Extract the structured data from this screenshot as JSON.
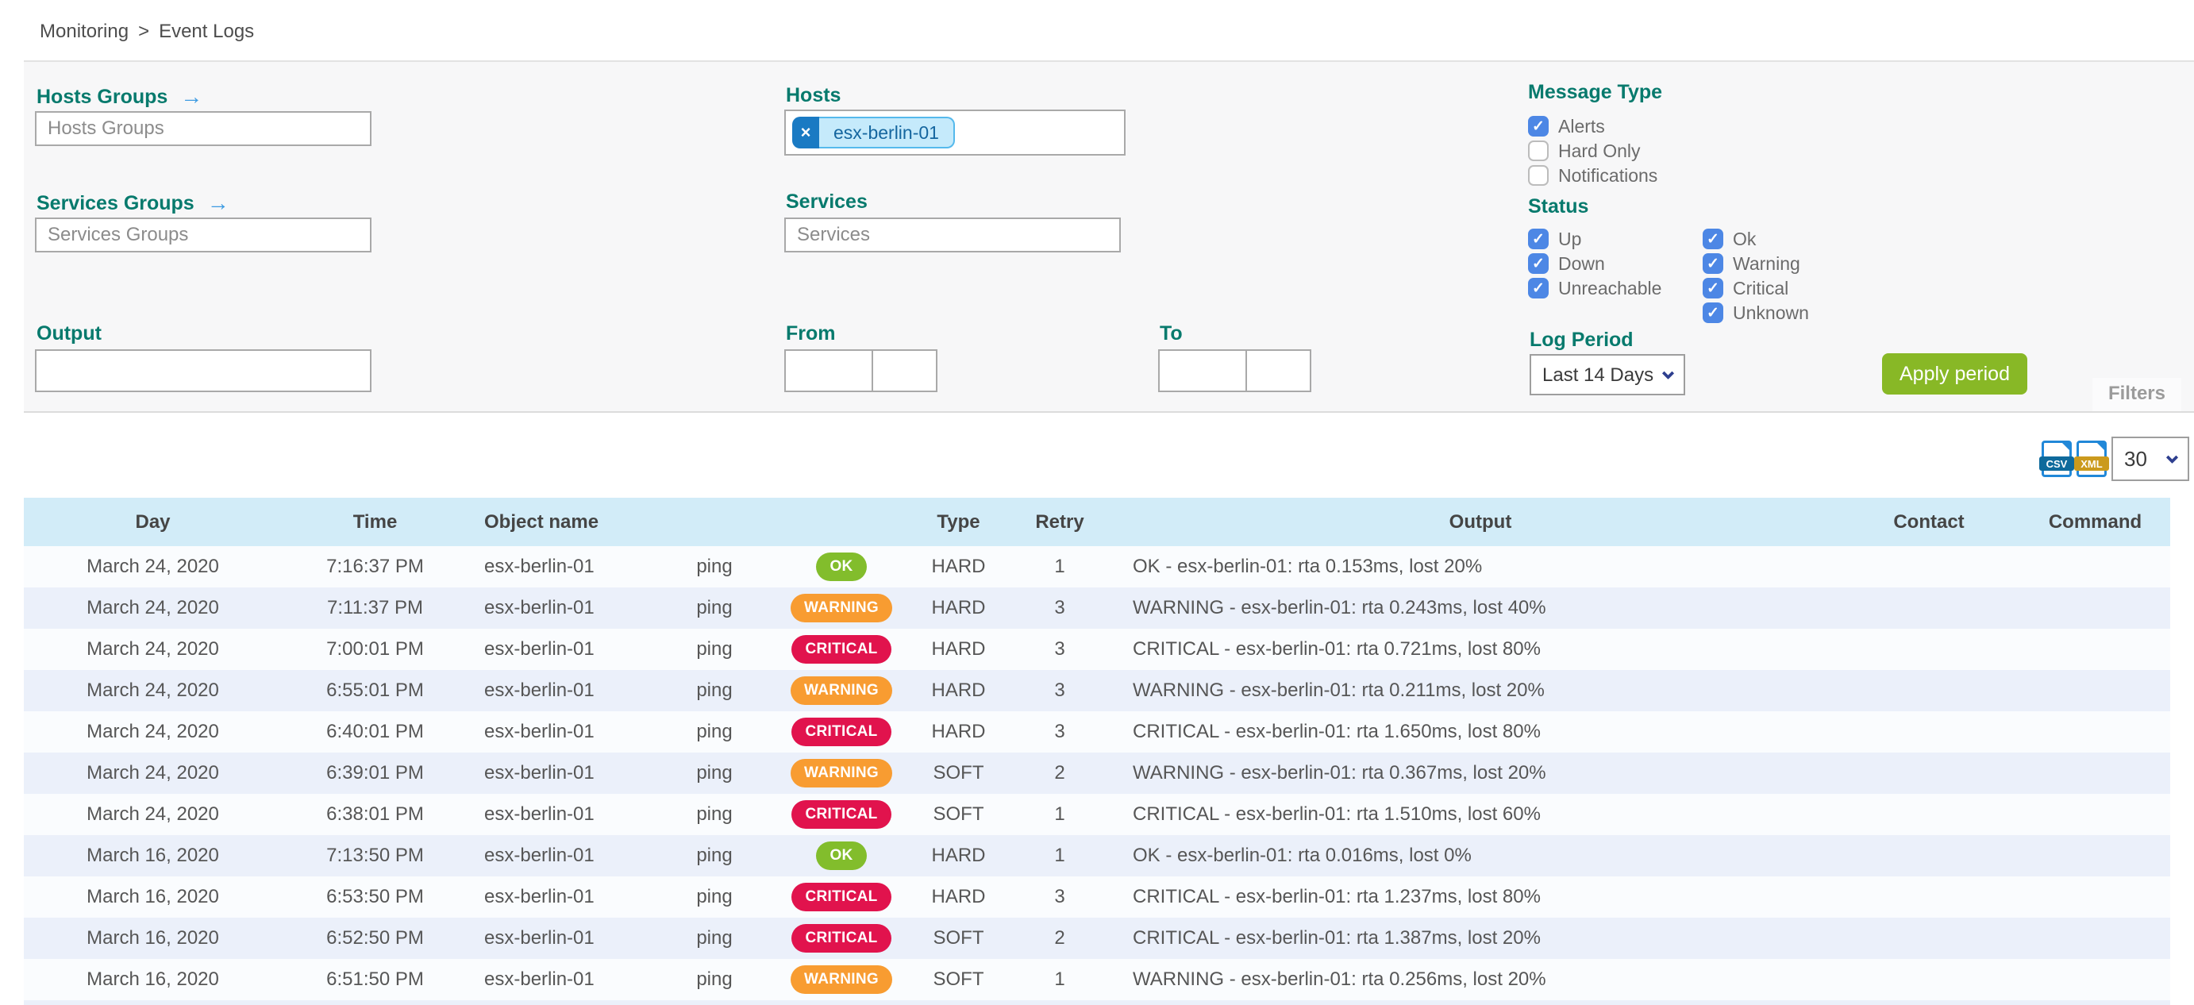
{
  "breadcrumb": {
    "items": [
      "Monitoring",
      "Event Logs"
    ],
    "separator": ">"
  },
  "filters": {
    "arrow_icon": "→",
    "check_glyph": "✓",
    "hosts_groups": {
      "label": "Hosts Groups",
      "placeholder": "Hosts Groups",
      "value": ""
    },
    "services_groups": {
      "label": "Services Groups",
      "placeholder": "Services Groups",
      "value": ""
    },
    "output": {
      "label": "Output",
      "value": ""
    },
    "hosts": {
      "label": "Hosts",
      "chips": [
        {
          "text": "esx-berlin-01",
          "remove_icon": "×"
        }
      ]
    },
    "services": {
      "label": "Services",
      "placeholder": "Services",
      "value": ""
    },
    "from": {
      "label": "From",
      "date_value": "",
      "time_value": ""
    },
    "to": {
      "label": "To",
      "date_value": "",
      "time_value": ""
    },
    "message_type": {
      "label": "Message Type",
      "items": [
        {
          "label": "Alerts",
          "checked": true
        },
        {
          "label": "Hard Only",
          "checked": false
        },
        {
          "label": "Notifications",
          "checked": false
        }
      ]
    },
    "status": {
      "label": "Status",
      "columns": [
        [
          {
            "label": "Up",
            "checked": true
          },
          {
            "label": "Down",
            "checked": true
          },
          {
            "label": "Unreachable",
            "checked": true
          }
        ],
        [
          {
            "label": "Ok",
            "checked": true
          },
          {
            "label": "Warning",
            "checked": true
          },
          {
            "label": "Critical",
            "checked": true
          },
          {
            "label": "Unknown",
            "checked": true
          }
        ]
      ]
    },
    "log_period": {
      "label": "Log Period",
      "selected": "Last 14 Days"
    },
    "apply_button": "Apply period",
    "filters_tab": "Filters"
  },
  "export": {
    "csv_label": "CSV",
    "xml_label": "XML",
    "page_size": "30"
  },
  "table": {
    "columns": [
      "Day",
      "Time",
      "Object name",
      "",
      "",
      "Type",
      "Retry",
      "Output",
      "Contact",
      "Command"
    ],
    "rows": [
      {
        "day": "March 24, 2020",
        "time": "7:16:37 PM",
        "object": "esx-berlin-01",
        "service": "ping",
        "status": "OK",
        "type": "HARD",
        "retry": "1",
        "output": "OK - esx-berlin-01: rta 0.153ms, lost 20%",
        "contact": "",
        "command": ""
      },
      {
        "day": "March 24, 2020",
        "time": "7:11:37 PM",
        "object": "esx-berlin-01",
        "service": "ping",
        "status": "WARNING",
        "type": "HARD",
        "retry": "3",
        "output": "WARNING - esx-berlin-01: rta 0.243ms, lost 40%",
        "contact": "",
        "command": ""
      },
      {
        "day": "March 24, 2020",
        "time": "7:00:01 PM",
        "object": "esx-berlin-01",
        "service": "ping",
        "status": "CRITICAL",
        "type": "HARD",
        "retry": "3",
        "output": "CRITICAL - esx-berlin-01: rta 0.721ms, lost 80%",
        "contact": "",
        "command": ""
      },
      {
        "day": "March 24, 2020",
        "time": "6:55:01 PM",
        "object": "esx-berlin-01",
        "service": "ping",
        "status": "WARNING",
        "type": "HARD",
        "retry": "3",
        "output": "WARNING - esx-berlin-01: rta 0.211ms, lost 20%",
        "contact": "",
        "command": ""
      },
      {
        "day": "March 24, 2020",
        "time": "6:40:01 PM",
        "object": "esx-berlin-01",
        "service": "ping",
        "status": "CRITICAL",
        "type": "HARD",
        "retry": "3",
        "output": "CRITICAL - esx-berlin-01: rta 1.650ms, lost 80%",
        "contact": "",
        "command": ""
      },
      {
        "day": "March 24, 2020",
        "time": "6:39:01 PM",
        "object": "esx-berlin-01",
        "service": "ping",
        "status": "WARNING",
        "type": "SOFT",
        "retry": "2",
        "output": "WARNING - esx-berlin-01: rta 0.367ms, lost 20%",
        "contact": "",
        "command": ""
      },
      {
        "day": "March 24, 2020",
        "time": "6:38:01 PM",
        "object": "esx-berlin-01",
        "service": "ping",
        "status": "CRITICAL",
        "type": "SOFT",
        "retry": "1",
        "output": "CRITICAL - esx-berlin-01: rta 1.510ms, lost 60%",
        "contact": "",
        "command": ""
      },
      {
        "day": "March 16, 2020",
        "time": "7:13:50 PM",
        "object": "esx-berlin-01",
        "service": "ping",
        "status": "OK",
        "type": "HARD",
        "retry": "1",
        "output": "OK - esx-berlin-01: rta 0.016ms, lost 0%",
        "contact": "",
        "command": ""
      },
      {
        "day": "March 16, 2020",
        "time": "6:53:50 PM",
        "object": "esx-berlin-01",
        "service": "ping",
        "status": "CRITICAL",
        "type": "HARD",
        "retry": "3",
        "output": "CRITICAL - esx-berlin-01: rta 1.237ms, lost 80%",
        "contact": "",
        "command": ""
      },
      {
        "day": "March 16, 2020",
        "time": "6:52:50 PM",
        "object": "esx-berlin-01",
        "service": "ping",
        "status": "CRITICAL",
        "type": "SOFT",
        "retry": "2",
        "output": "CRITICAL - esx-berlin-01: rta 1.387ms, lost 20%",
        "contact": "",
        "command": ""
      },
      {
        "day": "March 16, 2020",
        "time": "6:51:50 PM",
        "object": "esx-berlin-01",
        "service": "ping",
        "status": "WARNING",
        "type": "SOFT",
        "retry": "1",
        "output": "WARNING - esx-berlin-01: rta 0.256ms, lost 20%",
        "contact": "",
        "command": ""
      }
    ]
  },
  "colors": {
    "ok": "#82bd2c",
    "warning": "#f89c31",
    "critical": "#e1134d",
    "accent_teal": "#077a6d",
    "apply_green": "#88b826",
    "checkbox_blue": "#4d87e5",
    "header_blue": "#d2ecf8",
    "chip_blue": "#c5eafb"
  }
}
